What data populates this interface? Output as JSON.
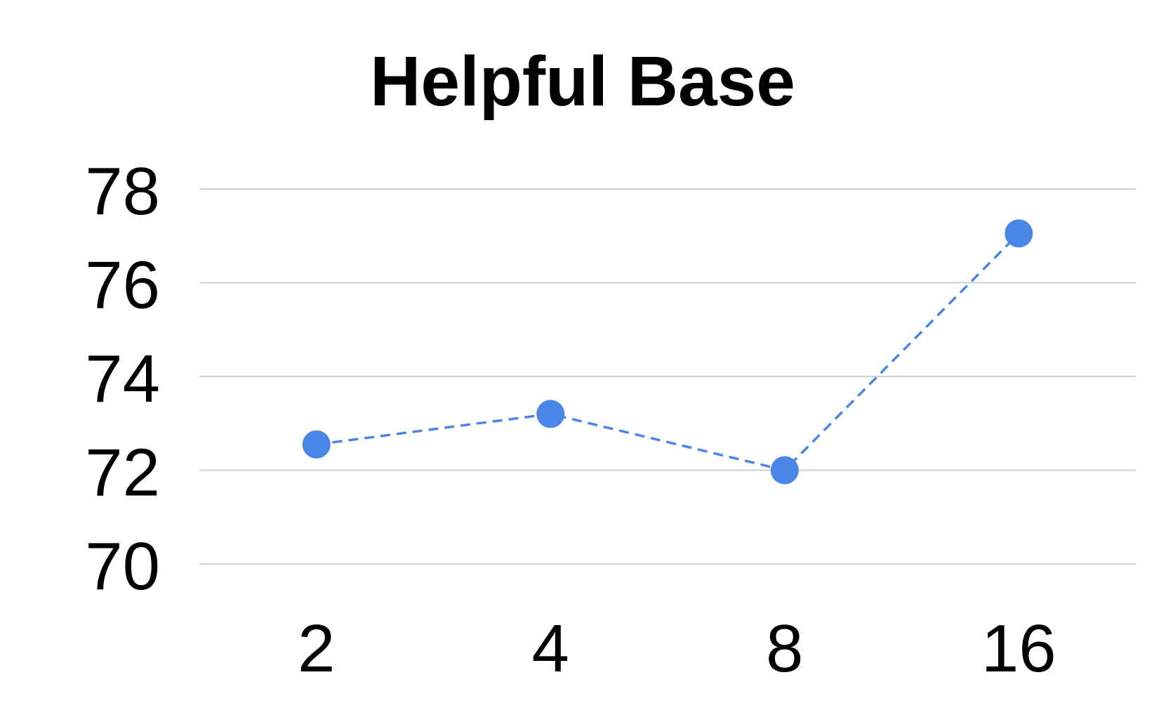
{
  "chart_data": {
    "type": "line",
    "title": "Helpful Base",
    "xlabel": "",
    "ylabel": "",
    "categories": [
      "2",
      "4",
      "8",
      "16"
    ],
    "series": [
      {
        "values": [
          72.55,
          73.2,
          72.0,
          77.05
        ]
      }
    ],
    "yticks": [
      "70",
      "72",
      "74",
      "76",
      "78"
    ],
    "ylim": [
      70,
      78
    ],
    "grid": true,
    "legend": "none",
    "line_style": "dashed",
    "colors": {
      "series": "#4a86e8",
      "grid": "#d0d0d0",
      "text": "#000000"
    }
  }
}
